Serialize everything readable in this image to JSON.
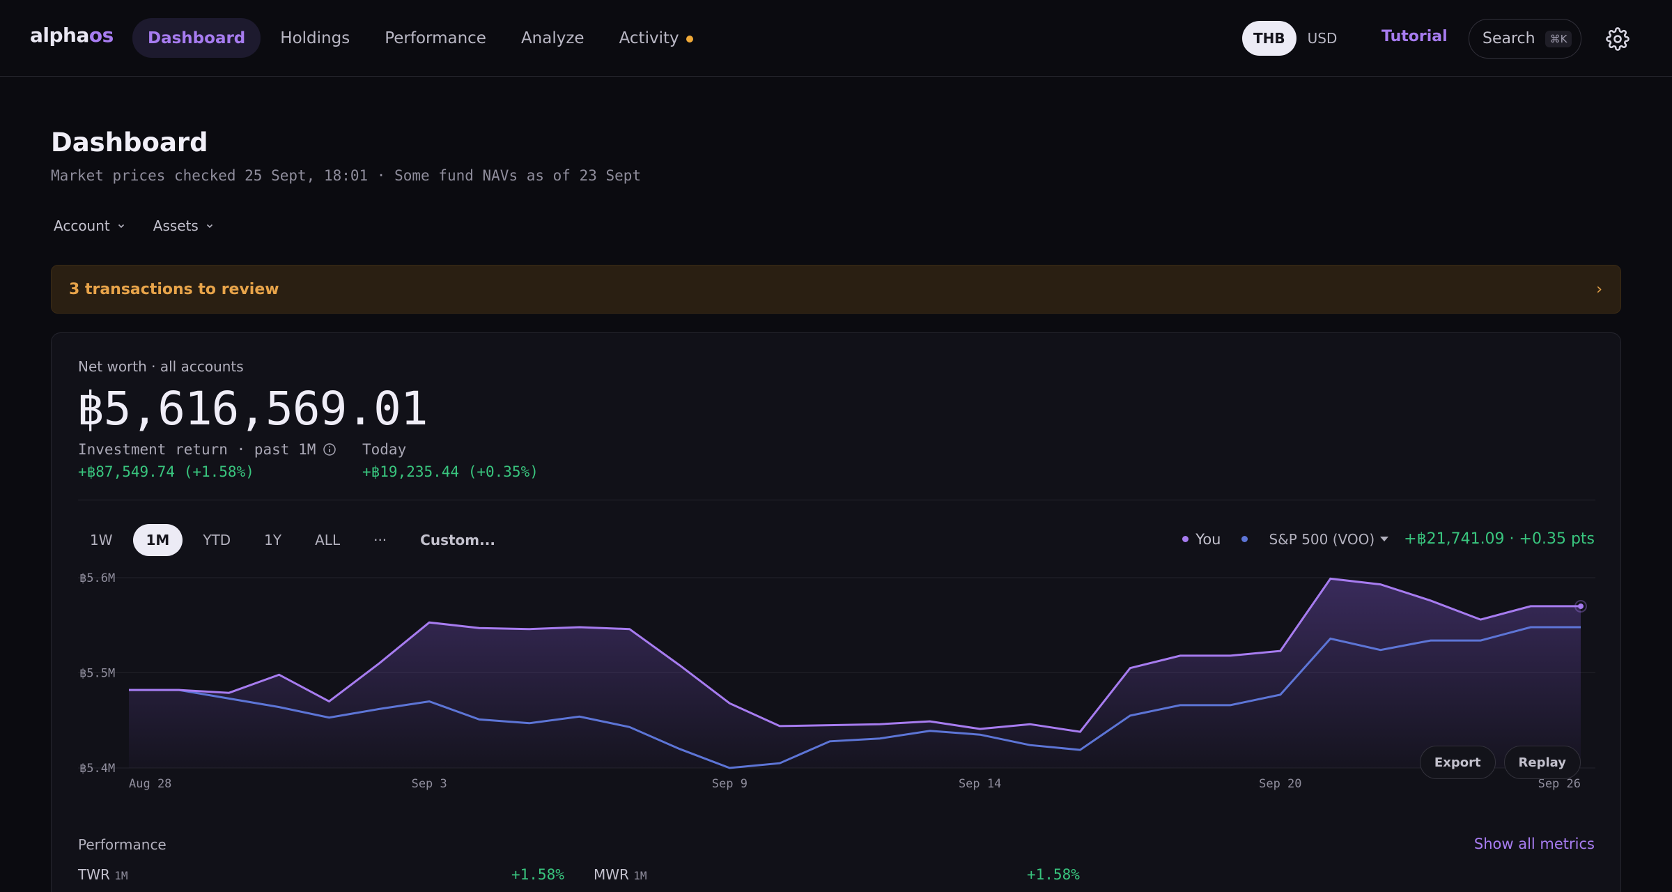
{
  "nav": {
    "logo_a": "alpha",
    "logo_b": "os",
    "tabs": [
      "Dashboard",
      "Holdings",
      "Performance",
      "Analyze",
      "Activity"
    ],
    "currency": [
      "THB",
      "USD"
    ],
    "tutorial": "Tutorial",
    "search_label": "Search",
    "search_kbd": "⌘K"
  },
  "header": {
    "title": "Dashboard",
    "subtitle": "Market prices checked 25 Sept, 18:01 · Some fund NAVs as of 23 Sept",
    "filters": [
      "Account",
      "Assets"
    ]
  },
  "review": {
    "text": "3 transactions to review",
    "chevron": "›"
  },
  "networth": {
    "label": "Net worth · all accounts",
    "value": "฿5,616,569.01",
    "return_label": "Investment return · past 1M",
    "return_value": "+฿87,549.74 (+1.58%)",
    "today_label": "Today",
    "today_value": "+฿19,235.44 (+0.35%)"
  },
  "ranges": [
    "1W",
    "1M",
    "YTD",
    "1Y",
    "ALL",
    "···",
    "Custom..."
  ],
  "legend": {
    "you": "You",
    "benchmark": "S&P 500 (VOO)",
    "delta": "+฿21,741.09 · +0.35 pts",
    "you_color": "#a77cf0",
    "bench_color": "#5d75d6"
  },
  "chart_buttons": [
    "Export",
    "Replay"
  ],
  "performance": {
    "label": "Performance",
    "show_all": "Show all metrics",
    "twr_label": "TWR",
    "twr_period": "1M",
    "twr_value": "+1.58%",
    "mwr_label": "MWR",
    "mwr_period": "1M",
    "mwr_value": "+1.58%"
  },
  "chart_data": {
    "type": "line",
    "x": [
      "Aug 28",
      "Aug 29",
      "Aug 30",
      "Aug 31",
      "Sep 1",
      "Sep 2",
      "Sep 3",
      "Sep 4",
      "Sep 5",
      "Sep 6",
      "Sep 7",
      "Sep 8",
      "Sep 9",
      "Sep 10",
      "Sep 11",
      "Sep 12",
      "Sep 13",
      "Sep 14",
      "Sep 15",
      "Sep 16",
      "Sep 17",
      "Sep 18",
      "Sep 19",
      "Sep 20",
      "Sep 21",
      "Sep 22",
      "Sep 23",
      "Sep 24",
      "Sep 25",
      "Sep 26"
    ],
    "x_tick_labels": [
      "Aug 28",
      "Sep 3",
      "Sep 9",
      "Sep 14",
      "Sep 20",
      "Sep 26"
    ],
    "y_tick_labels": [
      "฿5.6M",
      "฿5.5M",
      "฿5.4M"
    ],
    "y_ticks": [
      5.6,
      5.5,
      5.4
    ],
    "ylim": [
      5.4,
      5.6
    ],
    "series": [
      {
        "name": "You",
        "color": "#a77cf0",
        "values": [
          5.482,
          5.482,
          5.479,
          5.498,
          5.47,
          5.51,
          5.553,
          5.547,
          5.546,
          5.548,
          5.546,
          5.508,
          5.468,
          5.444,
          5.445,
          5.446,
          5.449,
          5.441,
          5.446,
          5.438,
          5.505,
          5.518,
          5.518,
          5.523,
          5.599,
          5.593,
          5.576,
          5.556,
          5.57,
          5.57
        ]
      },
      {
        "name": "S&P 500 (VOO)",
        "color": "#5d75d6",
        "values": [
          5.482,
          5.482,
          5.473,
          5.464,
          5.453,
          5.462,
          5.47,
          5.451,
          5.447,
          5.454,
          5.443,
          5.42,
          5.4,
          5.405,
          5.428,
          5.431,
          5.439,
          5.435,
          5.424,
          5.419,
          5.455,
          5.466,
          5.466,
          5.477,
          5.536,
          5.524,
          5.534,
          5.534,
          5.548,
          5.548
        ]
      }
    ]
  }
}
